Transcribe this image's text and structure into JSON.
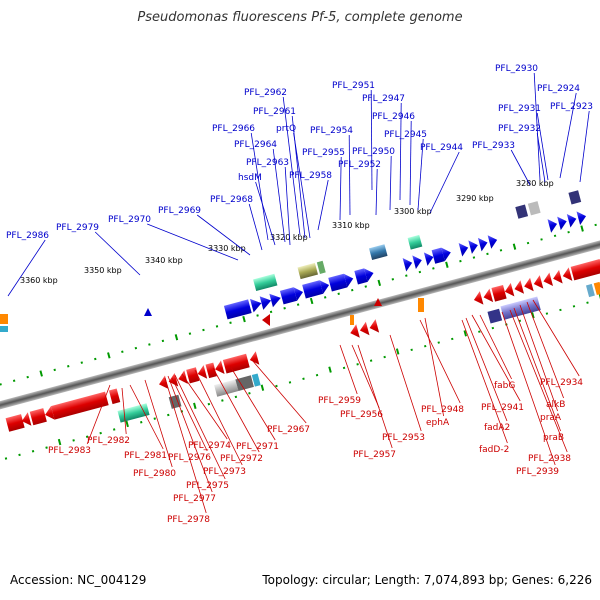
{
  "title": "Pseudomonas fluorescens Pf-5, complete genome",
  "footer": {
    "accession": "Accession: NC_004129",
    "summary": "Topology: circular; Length: 7,074,893 bp; Genes: 6,226"
  },
  "colors": {
    "top_strand": "#0000cc",
    "bottom_strand": "#cc0000",
    "backbone": "#777777",
    "ticks": "#009900"
  },
  "scale_labels": [
    "3360 kbp",
    "3350 kbp",
    "3340 kbp",
    "3330 kbp",
    "3320 kbp",
    "3310 kbp",
    "3300 kbp",
    "3290 kbp",
    "3280 kbp"
  ],
  "top_labels": [
    "PFL_2930",
    "PFL_2924",
    "PFL_2923",
    "PFL_2931",
    "PFL_2932",
    "PFL_2933",
    "PFL_2951",
    "PFL_2947",
    "PFL_2946",
    "PFL_2945",
    "PFL_2944",
    "PFL_2950",
    "PFL_2952",
    "PFL_2954",
    "PFL_2955",
    "PFL_2958",
    "PFL_2962",
    "PFL_2961",
    "prtQ",
    "PFL_2966",
    "PFL_2964",
    "PFL_2963",
    "hsdM",
    "PFL_2968",
    "PFL_2969",
    "PFL_2970",
    "PFL_2979",
    "PFL_2986"
  ],
  "bottom_labels": [
    "PFL_2983",
    "PFL_2982",
    "PFL_2981",
    "PFL_2980",
    "PFL_2978",
    "PFL_2977",
    "PFL_2975",
    "PFL_2976",
    "PFL_2974",
    "PFL_2973",
    "PFL_2972",
    "PFL_2971",
    "PFL_2967",
    "PFL_2959",
    "PFL_2956",
    "PFL_2957",
    "PFL_2953",
    "PFL_2948",
    "ephA",
    "fabG",
    "PFL_2941",
    "fadA2",
    "fadD-2",
    "PFL_2934",
    "alkB",
    "praA",
    "praB",
    "PFL_2938",
    "PFL_2939"
  ]
}
